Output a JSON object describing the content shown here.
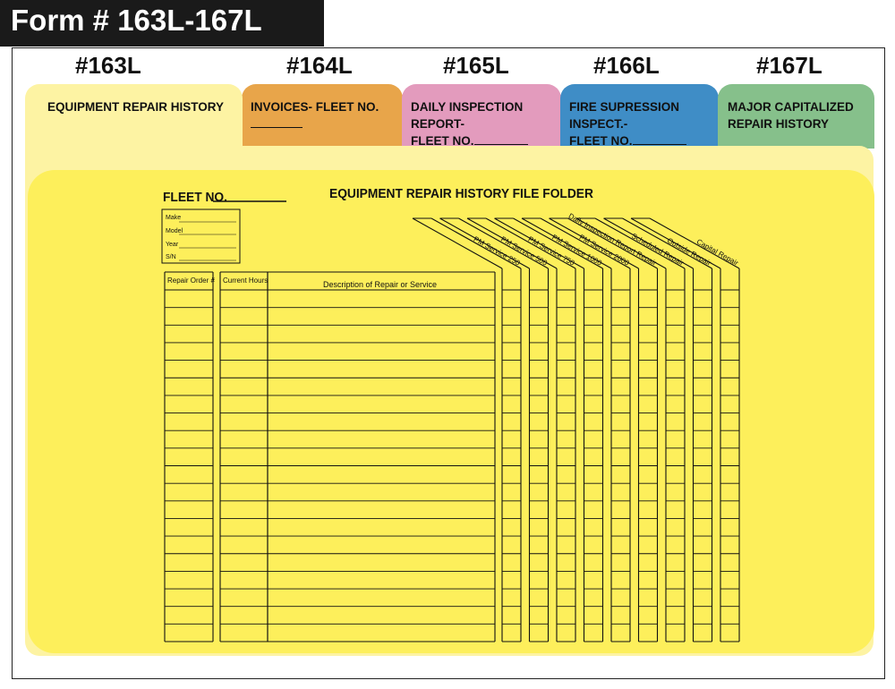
{
  "header": {
    "title": "Form # 163L-167L"
  },
  "form_numbers": [
    "#163L",
    "#164L",
    "#165L",
    "#166L",
    "#167L"
  ],
  "tabs": [
    {
      "line1": "EQUIPMENT REPAIR HISTORY",
      "line2": "",
      "color": "#fdf3a3"
    },
    {
      "line1": "INVOICES- FLEET NO.",
      "line2": "",
      "color": "#e8a54a"
    },
    {
      "line1": "DAILY INSPECTION REPORT-",
      "line2": "FLEET NO.",
      "color": "#e39bbd"
    },
    {
      "line1": "FIRE SUPRESSION INSPECT.-",
      "line2": "FLEET NO.",
      "color": "#3f8dc6"
    },
    {
      "line1": "MAJOR CAPITALIZED",
      "line2": "REPAIR HISTORY",
      "color": "#86c08b"
    }
  ],
  "folder": {
    "fleet_label": "FLEET NO.",
    "title": "EQUIPMENT REPAIR HISTORY FILE FOLDER",
    "info_fields": [
      "Make",
      "Model",
      "Year",
      "S/N"
    ],
    "columns": [
      "Repair Order #",
      "Current Hours",
      "Description of Repair or Service"
    ],
    "check_columns": [
      "PM Service 250",
      "PM Service 500",
      "PM Service 750",
      "PM Service 1000",
      "PM Service 2000",
      "Daily Inspection Report Repair",
      "Scheduled Repair",
      "Outside Repair",
      "Capital Repair"
    ],
    "row_count": 20,
    "colors": {
      "folder": "#fdef5b",
      "back_sheet": "#fdf3a3"
    }
  }
}
